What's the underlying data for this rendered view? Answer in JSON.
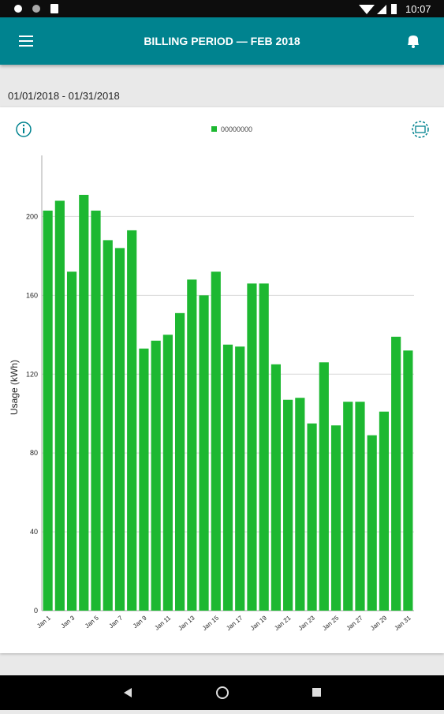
{
  "status_bar": {
    "time": "10:07"
  },
  "app_bar": {
    "title": "BILLING PERIOD  —  FEB 2018"
  },
  "date_range": "01/01/2018 - 01/31/2018",
  "chart_data": {
    "type": "bar",
    "y_label": "Usage (kWh)",
    "categories": [
      "Jan 1",
      null,
      "Jan 3",
      null,
      "Jan 5",
      null,
      "Jan 7",
      null,
      "Jan 9",
      null,
      "Jan 11",
      null,
      "Jan 13",
      null,
      "Jan 15",
      null,
      "Jan 17",
      null,
      "Jan 19",
      null,
      "Jan 21",
      null,
      "Jan 23",
      null,
      "Jan 25",
      null,
      "Jan 27",
      null,
      "Jan 29",
      null,
      "Jan 31"
    ],
    "series": [
      {
        "name": "00000000",
        "color": "#1db831",
        "values": [
          203,
          208,
          172,
          211,
          203,
          188,
          184,
          193,
          133,
          137,
          140,
          151,
          168,
          160,
          172,
          135,
          134,
          166,
          166,
          125,
          107,
          108,
          95,
          126,
          94,
          106,
          106,
          89,
          101,
          139,
          132
        ]
      }
    ],
    "ylim": [
      0,
      231
    ],
    "yticks": [
      0,
      40,
      80,
      120,
      160,
      200
    ],
    "grid": true
  }
}
